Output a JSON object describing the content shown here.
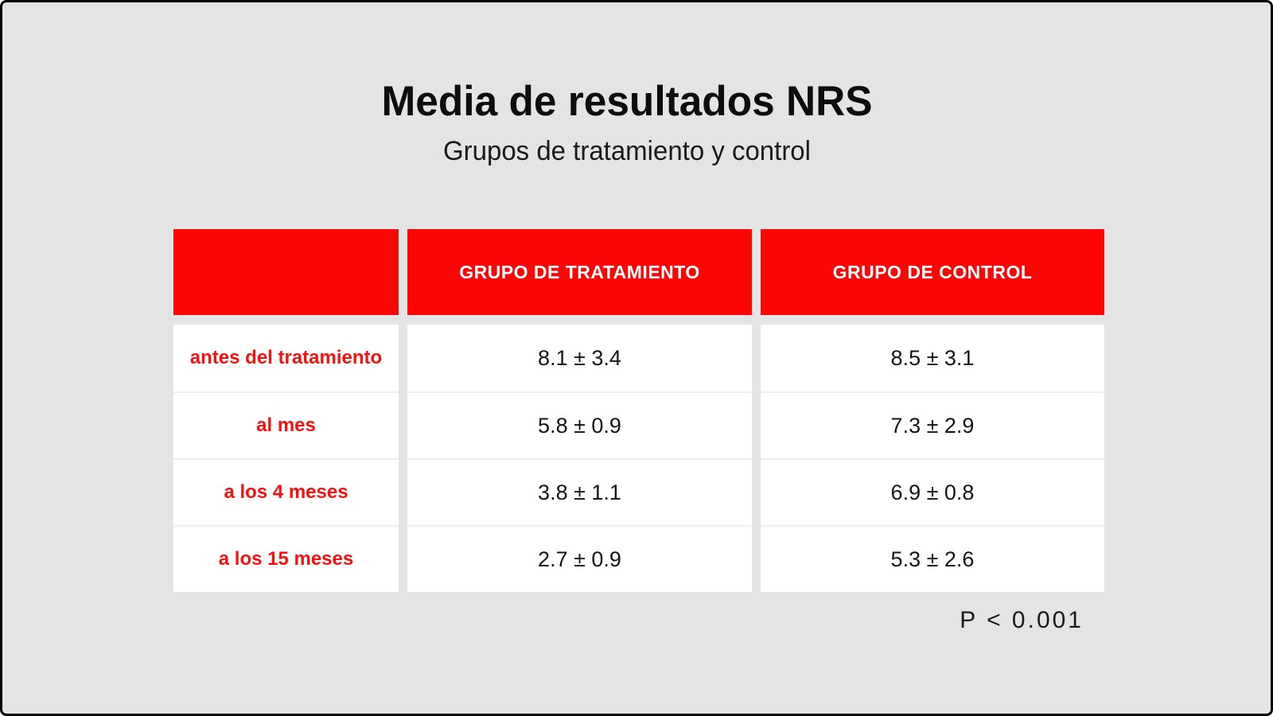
{
  "header": {
    "title": "Media de resultados NRS",
    "subtitle": "Grupos de tratamiento y control"
  },
  "table": {
    "col_headers": [
      "",
      "GRUPO DE TRATAMIENTO",
      "GRUPO DE CONTROL"
    ],
    "rows": [
      {
        "label": "antes del tratamiento",
        "values": [
          "8.1 ± 3.4",
          "8.5 ± 3.1"
        ]
      },
      {
        "label": "al mes",
        "values": [
          "5.8 ± 0.9",
          "7.3 ± 2.9"
        ]
      },
      {
        "label": "a los 4 meses",
        "values": [
          "3.8 ± 1.1",
          "6.9 ± 0.8"
        ]
      },
      {
        "label": "a los 15 meses",
        "values": [
          "2.7 ± 0.9",
          "5.3 ± 2.6"
        ]
      }
    ]
  },
  "footnote": {
    "text": "P < 0.001"
  },
  "colors": {
    "accent_red": "#FB0505",
    "label_red": "#F41111",
    "background": "#E4E4E4",
    "cell_white": "#FFFFFF",
    "text_black": "#141414",
    "frame_black": "#000000"
  },
  "chart_data": {
    "type": "table",
    "title": "Media de resultados NRS",
    "subtitle": "Grupos de tratamiento y control",
    "categories": [
      "antes del tratamiento",
      "al mes",
      "a los 4 meses",
      "a los 15 meses"
    ],
    "series": [
      {
        "name": "GRUPO DE TRATAMIENTO",
        "values": [
          "8.1 ± 3.4",
          "5.8 ± 0.9",
          "3.8 ± 1.1",
          "2.7 ± 0.9"
        ],
        "means": [
          8.1,
          5.8,
          3.8,
          2.7
        ],
        "sds": [
          3.4,
          0.9,
          1.1,
          0.9
        ]
      },
      {
        "name": "GRUPO DE CONTROL",
        "values": [
          "8.5 ± 3.1",
          "7.3 ± 2.9",
          "6.9 ± 0.8",
          "5.3 ± 2.6"
        ],
        "means": [
          8.5,
          7.3,
          6.9,
          5.3
        ],
        "sds": [
          3.1,
          2.9,
          0.8,
          2.6
        ]
      }
    ],
    "annotation": "P < 0.001",
    "legend_position": "none",
    "grid": false
  }
}
